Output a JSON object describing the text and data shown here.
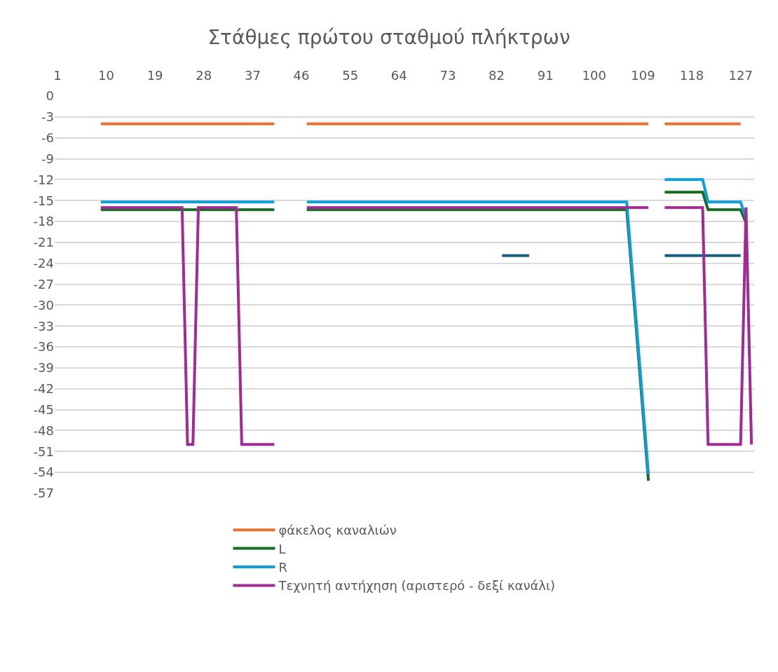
{
  "chart_data": {
    "type": "line",
    "title": "Στάθμες πρώτου σταθμού πλήκτρων",
    "xlim": [
      0.5,
      129.5
    ],
    "xticks": [
      1,
      10,
      19,
      28,
      37,
      46,
      55,
      64,
      73,
      82,
      91,
      100,
      109,
      118,
      127
    ],
    "ylim": [
      -57,
      0
    ],
    "yticks": [
      0,
      -3,
      -6,
      -9,
      -12,
      -15,
      -18,
      -21,
      -24,
      -27,
      -30,
      -33,
      -36,
      -39,
      -42,
      -45,
      -48,
      -51,
      -54,
      -57
    ],
    "grid": "y",
    "legend": "bottom",
    "marker": "none",
    "line_style": "solid",
    "series": [
      {
        "color": "#156082",
        "x": [
          83,
          88,
          89,
          113,
          127
        ],
        "values": [
          -22.9,
          -22.9,
          null,
          -22.9,
          -22.9
        ]
      },
      {
        "name": "φάκελος καναλιών",
        "color": "#e97132",
        "x": [
          9,
          41,
          42,
          47,
          110,
          111,
          113,
          127
        ],
        "values": [
          -4,
          -4,
          null,
          -4,
          -4,
          null,
          -4,
          -4
        ]
      },
      {
        "name": "L",
        "color": "#196b24",
        "x": [
          9,
          41,
          42,
          47,
          106,
          110,
          111,
          113,
          120,
          121,
          127,
          128
        ],
        "values": [
          -16.3,
          -16.3,
          null,
          -16.3,
          -16.3,
          -55.2,
          null,
          -13.8,
          -13.8,
          -16.3,
          -16.3,
          -18.2
        ]
      },
      {
        "name": "R",
        "color": "#0f9ed5",
        "x": [
          9,
          41,
          42,
          47,
          106,
          110,
          111,
          113,
          120,
          121,
          127,
          128
        ],
        "values": [
          -15.2,
          -15.2,
          null,
          -15.2,
          -15.2,
          -54.2,
          null,
          -12,
          -12,
          -15.2,
          -15.2,
          -17.5
        ]
      },
      {
        "name": "Τεχνητή αντήχηση (αριστερό - δεξί κανάλι)",
        "color": "#a02b93",
        "x": [
          9,
          24,
          25,
          26,
          27,
          34,
          35,
          41,
          42,
          47,
          110,
          111,
          113,
          120,
          121,
          127,
          128,
          129
        ],
        "values": [
          -16,
          -16,
          -50,
          -50,
          -16,
          -16,
          -50,
          -50,
          null,
          -16,
          -16,
          null,
          -16,
          -16,
          -50,
          -50,
          -16,
          -50
        ]
      }
    ]
  }
}
